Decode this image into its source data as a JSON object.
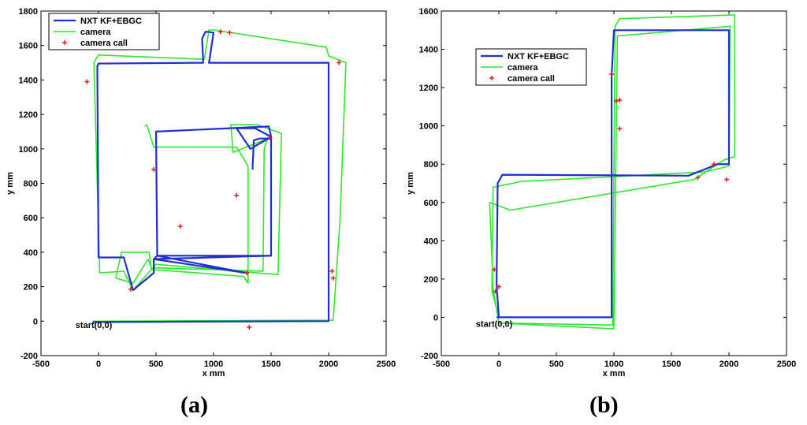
{
  "colors": {
    "kf": "#1f2fd2",
    "camera": "#2ee82e",
    "call": "#e81e1e",
    "axis": "#000000"
  },
  "chart_data": [
    {
      "type": "line",
      "panel_label": "(a)",
      "xlabel": "x mm",
      "ylabel": "y mm",
      "xlim": [
        -500,
        2500
      ],
      "ylim": [
        -200,
        1800
      ],
      "xticks": [
        -500,
        0,
        500,
        1000,
        1500,
        2000,
        2500
      ],
      "yticks": [
        -200,
        0,
        200,
        400,
        600,
        800,
        1000,
        1200,
        1400,
        1600,
        1800
      ],
      "legend_position": "top-left",
      "annotation": {
        "text": "start(0,0)",
        "x": -200,
        "y": -40
      },
      "series": [
        {
          "name": "NXT KF+EBGC",
          "style": "line",
          "points": [
            [
              -50,
              -5
            ],
            [
              2000,
              0
            ],
            [
              2000,
              1500
            ],
            [
              960,
              1500
            ],
            [
              1000,
              1675
            ],
            [
              930,
              1680
            ],
            [
              900,
              1640
            ],
            [
              910,
              1500
            ],
            [
              0,
              1495
            ],
            [
              -10,
              1480
            ],
            [
              0,
              370
            ],
            [
              220,
              370
            ],
            [
              300,
              180
            ],
            [
              480,
              280
            ],
            [
              480,
              360
            ],
            [
              1500,
              380
            ],
            [
              1500,
              1070
            ],
            [
              1360,
              1120
            ],
            [
              1200,
              1120
            ],
            [
              1320,
              1000
            ],
            [
              1500,
              1070
            ],
            [
              1500,
              1000
            ],
            [
              1500,
              380
            ],
            [
              510,
              380
            ],
            [
              480,
              360
            ],
            [
              1280,
              280
            ],
            [
              510,
              380
            ],
            [
              500,
              1100
            ],
            [
              1480,
              1130
            ],
            [
              1500,
              1070
            ],
            [
              1480,
              1060
            ],
            [
              1400,
              1060
            ],
            [
              1350,
              1050
            ],
            [
              1340,
              900
            ],
            [
              1340,
              880
            ]
          ]
        },
        {
          "name": "camera",
          "style": "line",
          "points": [
            [
              -50,
              0
            ],
            [
              2040,
              5
            ],
            [
              2100,
              600
            ],
            [
              2150,
              1500
            ],
            [
              2000,
              1540
            ],
            [
              1980,
              1590
            ],
            [
              1000,
              1690
            ],
            [
              960,
              1690
            ],
            [
              920,
              1520
            ],
            [
              0,
              1545
            ],
            [
              -40,
              1500
            ],
            [
              10,
              280
            ],
            [
              220,
              290
            ],
            [
              300,
              180
            ],
            [
              500,
              330
            ],
            [
              1560,
              270
            ],
            [
              1590,
              1090
            ],
            [
              1380,
              1140
            ],
            [
              1150,
              1140
            ],
            [
              1170,
              980
            ],
            [
              1470,
              1060
            ],
            [
              1440,
              1000
            ],
            [
              1430,
              290
            ],
            [
              460,
              310
            ],
            [
              430,
              360
            ],
            [
              300,
              220
            ],
            [
              150,
              250
            ],
            [
              200,
              400
            ],
            [
              440,
              400
            ],
            [
              460,
              300
            ],
            [
              1260,
              260
            ],
            [
              1300,
              220
            ],
            [
              1300,
              900
            ],
            [
              1200,
              1010
            ],
            [
              480,
              1010
            ],
            [
              420,
              1140
            ],
            [
              400,
              1130
            ]
          ]
        },
        {
          "name": "camera call",
          "style": "marker",
          "points": [
            [
              -100,
              1390
            ],
            [
              1060,
              1680
            ],
            [
              1140,
              1675
            ],
            [
              2090,
              1500
            ],
            [
              1490,
              1065
            ],
            [
              480,
              880
            ],
            [
              1200,
              730
            ],
            [
              710,
              550
            ],
            [
              2030,
              290
            ],
            [
              2040,
              250
            ],
            [
              1290,
              280
            ],
            [
              280,
              185
            ],
            [
              1310,
              -35
            ]
          ]
        }
      ]
    },
    {
      "type": "line",
      "panel_label": "(b)",
      "xlabel": "x mm",
      "ylabel": "y mm",
      "xlim": [
        -500,
        2500
      ],
      "ylim": [
        -200,
        1600
      ],
      "xticks": [
        -500,
        0,
        500,
        1000,
        1500,
        2000,
        2500
      ],
      "yticks": [
        -200,
        0,
        200,
        400,
        600,
        800,
        1000,
        1200,
        1400,
        1600
      ],
      "legend_position": "top-left",
      "annotation": {
        "text": "start(0,0)",
        "x": -200,
        "y": -50
      },
      "series": [
        {
          "name": "NXT KF+EBGC",
          "style": "line",
          "points": [
            [
              -20,
              0
            ],
            [
              980,
              0
            ],
            [
              980,
              1260
            ],
            [
              1000,
              1500
            ],
            [
              2000,
              1500
            ],
            [
              2000,
              800
            ],
            [
              1900,
              800
            ],
            [
              1650,
              740
            ],
            [
              30,
              745
            ],
            [
              -10,
              700
            ],
            [
              -20,
              170
            ],
            [
              0,
              0
            ]
          ]
        },
        {
          "name": "camera",
          "style": "line",
          "points": [
            [
              0,
              -30
            ],
            [
              990,
              -40
            ],
            [
              1010,
              1520
            ],
            [
              1050,
              1560
            ],
            [
              2050,
              1580
            ],
            [
              2050,
              840
            ],
            [
              1950,
              820
            ],
            [
              1700,
              720
            ],
            [
              100,
              560
            ],
            [
              -80,
              600
            ],
            [
              -50,
              150
            ],
            [
              0,
              -30
            ],
            [
              1000,
              -60
            ],
            [
              1030,
              1470
            ],
            [
              2010,
              1520
            ],
            [
              2000,
              790
            ],
            [
              1800,
              760
            ],
            [
              200,
              710
            ],
            [
              -50,
              680
            ],
            [
              -60,
              140
            ],
            [
              0,
              0
            ]
          ]
        },
        {
          "name": "camera call",
          "style": "marker",
          "points": [
            [
              980,
              1270
            ],
            [
              1020,
              1130
            ],
            [
              1050,
              1135
            ],
            [
              1050,
              985
            ],
            [
              1870,
              800
            ],
            [
              1730,
              730
            ],
            [
              1980,
              720
            ],
            [
              -40,
              250
            ],
            [
              0,
              160
            ],
            [
              -30,
              135
            ]
          ]
        }
      ]
    }
  ]
}
